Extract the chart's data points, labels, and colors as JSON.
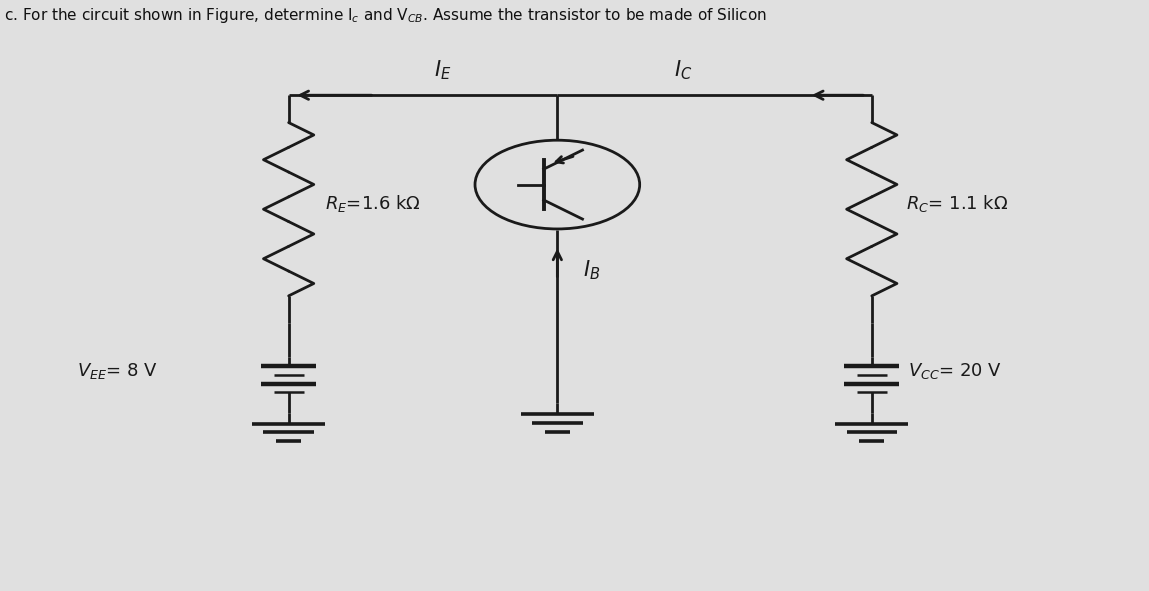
{
  "title_text": "c. For the circuit shown in Figure, determine I$_c$ and V$_{CB}$. Assume the transistor to be made of Silicon",
  "bg_color": "#e0e0e0",
  "panel_color": "#ebebeb",
  "line_color": "#1a1a1a",
  "RE_label": "$R_E$=1.6 kΩ",
  "RC_label": "$R_C$= 1.1 kΩ",
  "VEE_label": "$V_{EE}$= 8 V",
  "VCC_label": "$V_{CC}$= 20 V",
  "IE_label": "$I_E$",
  "IC_label": "$I_C$",
  "IB_label": "$I_B$",
  "figsize": [
    11.49,
    5.91
  ],
  "dpi": 100
}
